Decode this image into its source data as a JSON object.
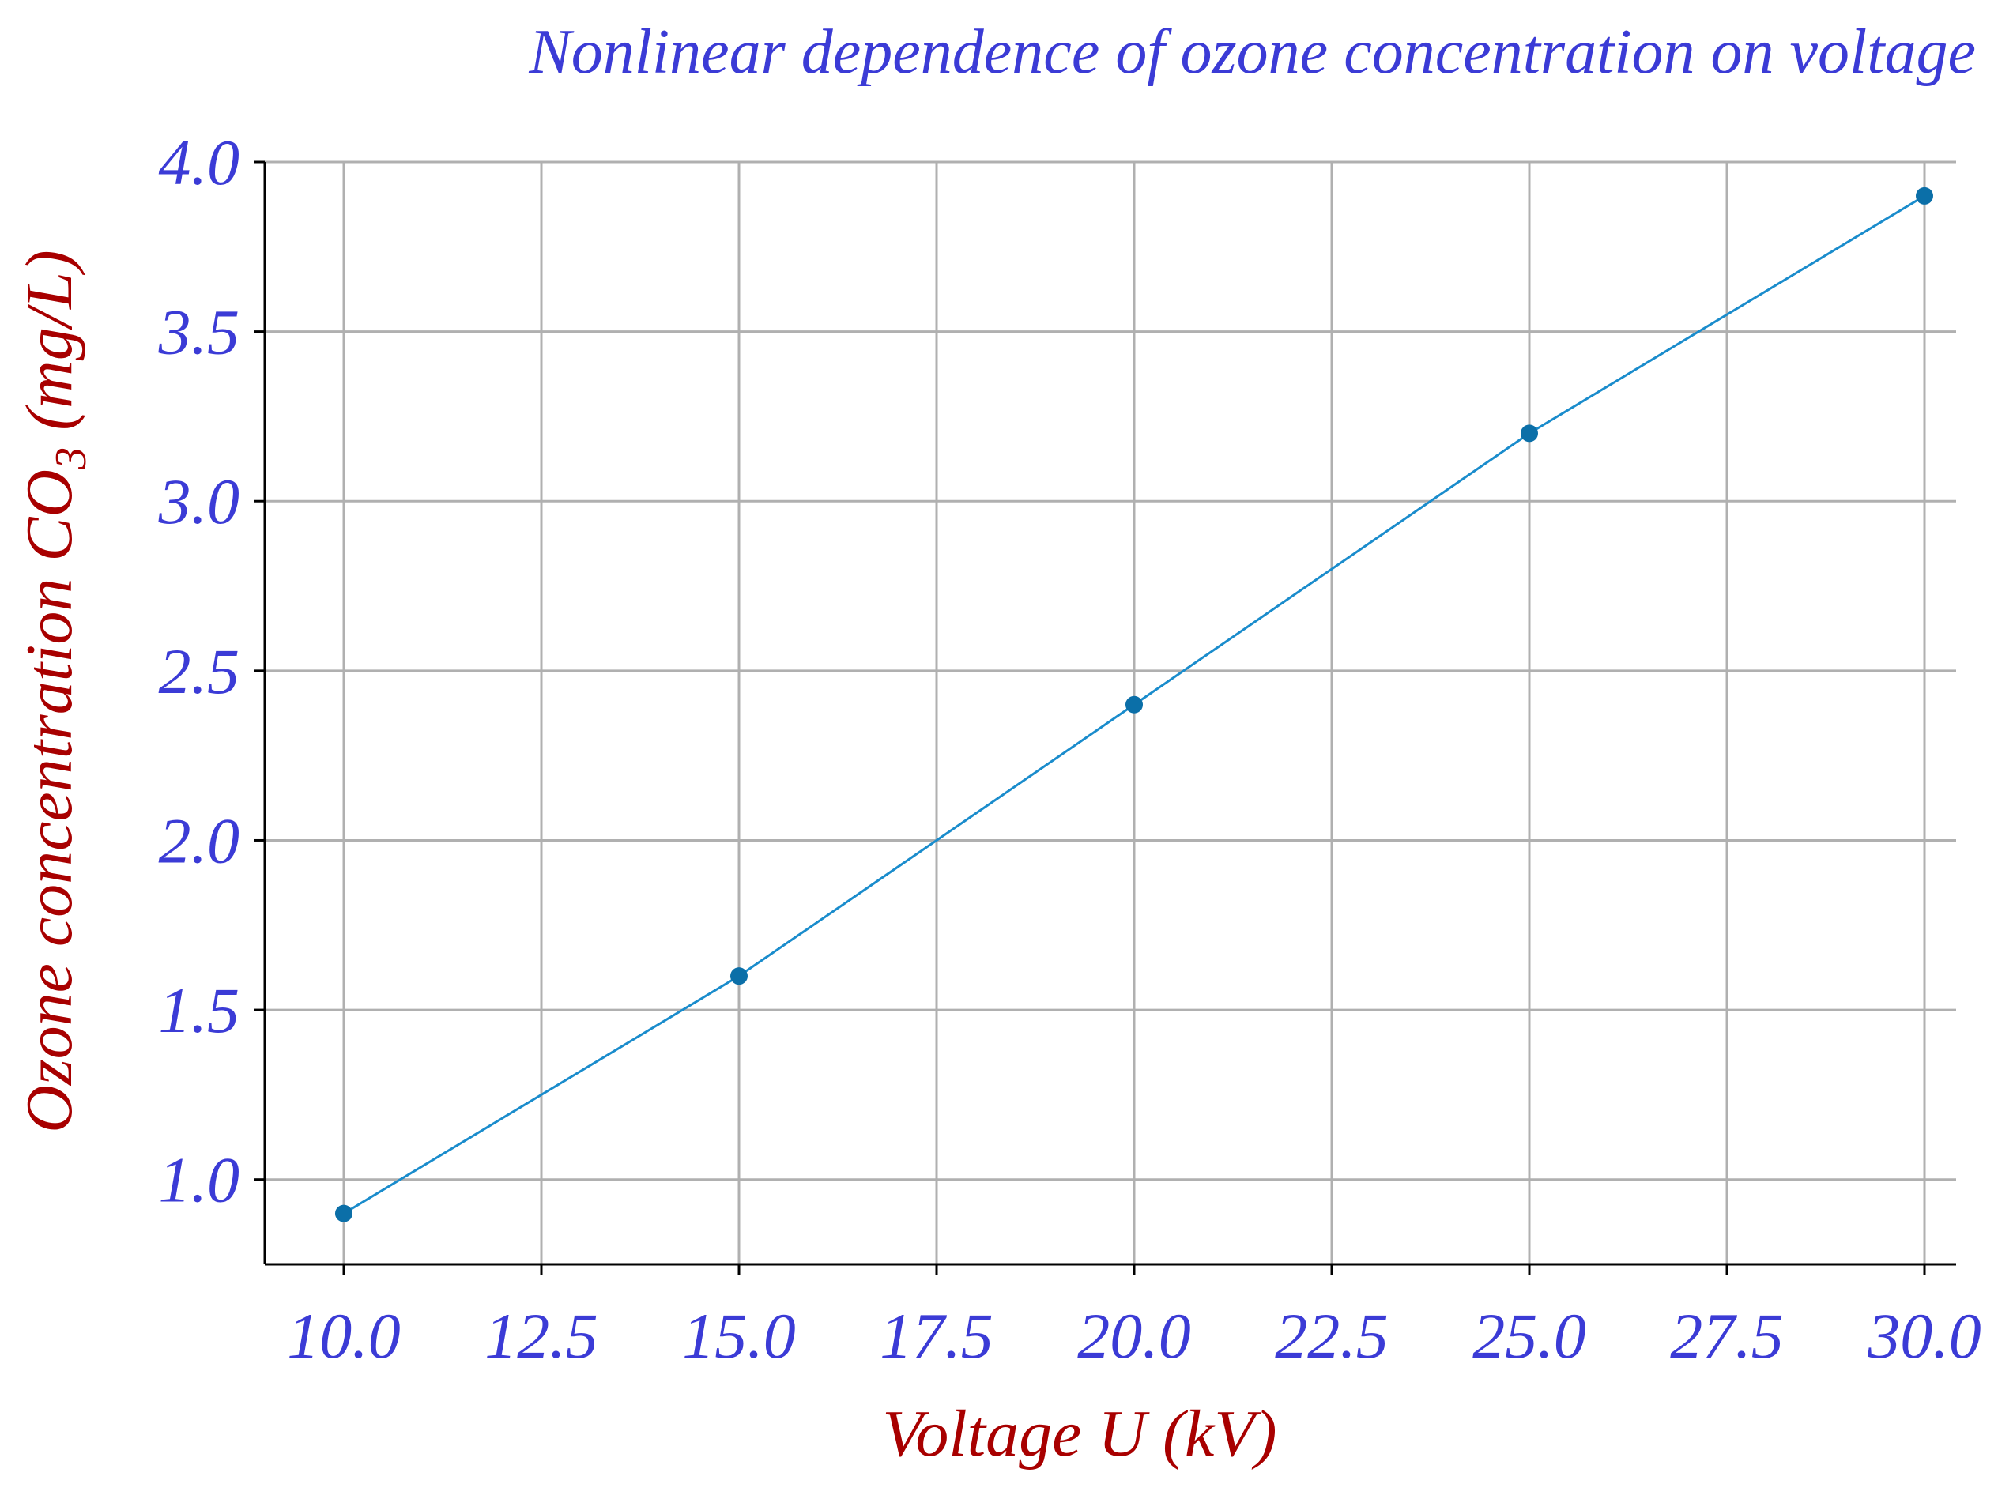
{
  "chart_data": {
    "type": "line",
    "title": "Nonlinear dependence of ozone concentration on voltage",
    "xlabel": "Voltage U (kV)",
    "ylabel_main": "Ozone concentration C",
    "ylabel_sub": "O",
    "ylabel_sub_index": "3",
    "ylabel_unit": " (mg/L)",
    "xlim": [
      9.0,
      30.4
    ],
    "ylim": [
      0.75,
      4.0
    ],
    "xticks": [
      10.0,
      12.5,
      15.0,
      17.5,
      20.0,
      22.5,
      25.0,
      27.5,
      30.0
    ],
    "yticks": [
      1.0,
      1.5,
      2.0,
      2.5,
      3.0,
      3.5,
      4.0
    ],
    "grid": true,
    "series": [
      {
        "x": [
          10,
          15,
          20,
          25,
          30
        ],
        "y": [
          0.9,
          1.6,
          2.4,
          3.2,
          3.9
        ],
        "color": "#1a8ccc",
        "marker_color": "#0b6fa8"
      }
    ]
  }
}
